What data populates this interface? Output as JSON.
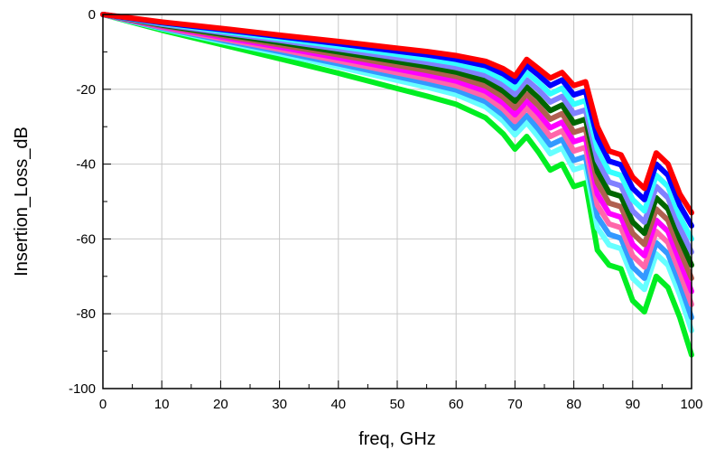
{
  "chart_data": {
    "type": "line",
    "title": "",
    "xlabel": "freq, GHz",
    "ylabel": "Insertion_Loss_dB",
    "xlim": [
      0,
      100
    ],
    "ylim": [
      -100,
      0
    ],
    "xticks": [
      0,
      10,
      20,
      30,
      40,
      50,
      60,
      70,
      80,
      90,
      100
    ],
    "yticks": [
      0,
      -20,
      -40,
      -60,
      -80,
      -100
    ],
    "xtick_labels": [
      "0",
      "10",
      "20",
      "30",
      "40",
      "50",
      "60",
      "70",
      "80",
      "90",
      "100"
    ],
    "ytick_labels": [
      "0",
      "-20",
      "-40",
      "-60",
      "-80",
      "-100"
    ],
    "grid": true,
    "legend": "none",
    "x": [
      0,
      5,
      10,
      20,
      30,
      40,
      50,
      55,
      60,
      65,
      68,
      70,
      72,
      74,
      76,
      78,
      80,
      82,
      84,
      86,
      88,
      90,
      92,
      94,
      96,
      98,
      100
    ],
    "series": [
      {
        "color": "#ff0000",
        "values": [
          0,
          -1.0,
          -2.0,
          -3.7,
          -5.5,
          -7.2,
          -9.0,
          -9.9,
          -11.0,
          -12.5,
          -14.5,
          -16.5,
          -12.0,
          -14.5,
          -17.0,
          -15.5,
          -19.0,
          -18.0,
          -30.0,
          -36.5,
          -37.5,
          -43.5,
          -46.5,
          -37.0,
          -40.0,
          -48.0,
          -53.0
        ]
      },
      {
        "color": "#0000ff",
        "values": [
          0,
          -1.1,
          -2.2,
          -4.0,
          -5.9,
          -7.8,
          -9.8,
          -10.8,
          -12.0,
          -13.7,
          -15.9,
          -18.0,
          -13.7,
          -16.2,
          -19.0,
          -17.5,
          -21.5,
          -20.5,
          -33.0,
          -39.2,
          -40.2,
          -46.5,
          -49.5,
          -40.0,
          -43.0,
          -51.0,
          -56.5
        ]
      },
      {
        "color": "#33ffff",
        "values": [
          0,
          -1.2,
          -2.4,
          -4.4,
          -6.4,
          -8.5,
          -10.7,
          -11.8,
          -13.1,
          -15.0,
          -17.4,
          -19.7,
          -15.6,
          -18.2,
          -21.2,
          -19.7,
          -24.0,
          -23.0,
          -36.0,
          -42.0,
          -43.0,
          -49.5,
          -52.5,
          -43.0,
          -46.0,
          -54.0,
          -60.0
        ]
      },
      {
        "color": "#8080ff",
        "values": [
          0,
          -1.3,
          -2.6,
          -4.8,
          -6.9,
          -9.2,
          -11.6,
          -12.8,
          -14.2,
          -16.3,
          -18.9,
          -21.4,
          -17.5,
          -20.2,
          -23.4,
          -21.9,
          -26.5,
          -25.5,
          -39.0,
          -44.8,
          -45.8,
          -52.5,
          -55.5,
          -46.0,
          -49.0,
          -57.0,
          -63.5
        ]
      },
      {
        "color": "#006600",
        "values": [
          0,
          -1.4,
          -2.8,
          -5.2,
          -7.5,
          -10.0,
          -12.6,
          -13.9,
          -15.4,
          -17.7,
          -20.5,
          -23.2,
          -19.4,
          -22.3,
          -25.7,
          -24.2,
          -29.0,
          -28.0,
          -42.0,
          -47.6,
          -48.6,
          -55.5,
          -58.5,
          -49.0,
          -52.0,
          -60.0,
          -67.0
        ]
      },
      {
        "color": "#b06050",
        "values": [
          0,
          -1.5,
          -3.0,
          -5.6,
          -8.1,
          -10.8,
          -13.6,
          -15.0,
          -16.6,
          -19.1,
          -22.1,
          -25.0,
          -21.3,
          -24.4,
          -28.0,
          -26.5,
          -31.5,
          -30.5,
          -45.0,
          -50.4,
          -51.4,
          -58.5,
          -61.5,
          -52.0,
          -55.0,
          -63.0,
          -70.5
        ]
      },
      {
        "color": "#ff00ff",
        "values": [
          0,
          -1.6,
          -3.2,
          -6.0,
          -8.7,
          -11.6,
          -14.6,
          -16.1,
          -17.8,
          -20.5,
          -23.7,
          -26.8,
          -23.2,
          -26.5,
          -30.3,
          -28.8,
          -34.0,
          -33.0,
          -48.0,
          -53.2,
          -54.2,
          -61.5,
          -64.5,
          -55.0,
          -58.0,
          -66.0,
          -74.0
        ]
      },
      {
        "color": "#ff66aa",
        "values": [
          0,
          -1.7,
          -3.4,
          -6.4,
          -9.3,
          -12.4,
          -15.6,
          -17.2,
          -19.0,
          -21.9,
          -25.3,
          -28.6,
          -25.1,
          -28.6,
          -32.6,
          -31.1,
          -36.5,
          -35.5,
          -51.0,
          -56.0,
          -57.0,
          -64.5,
          -67.5,
          -58.0,
          -61.0,
          -69.0,
          -77.5
        ]
      },
      {
        "color": "#3399ff",
        "values": [
          0,
          -1.8,
          -3.6,
          -6.8,
          -9.9,
          -13.2,
          -16.6,
          -18.3,
          -20.2,
          -23.3,
          -26.9,
          -30.4,
          -27.0,
          -30.7,
          -34.9,
          -33.4,
          -39.0,
          -38.0,
          -54.0,
          -58.8,
          -59.8,
          -67.5,
          -70.5,
          -61.0,
          -64.0,
          -72.0,
          -81.0
        ]
      },
      {
        "color": "#66ffff",
        "values": [
          0,
          -1.9,
          -3.8,
          -7.2,
          -10.5,
          -14.0,
          -17.6,
          -19.4,
          -21.4,
          -24.7,
          -28.5,
          -32.2,
          -28.9,
          -32.8,
          -37.2,
          -35.7,
          -41.5,
          -40.5,
          -57.0,
          -61.6,
          -62.6,
          -70.5,
          -73.5,
          -64.0,
          -67.0,
          -75.0,
          -84.5
        ]
      },
      {
        "color": "#00ee22",
        "values": [
          0,
          -2.1,
          -4.2,
          -8.0,
          -11.8,
          -15.7,
          -19.8,
          -21.8,
          -24.0,
          -27.6,
          -31.9,
          -36.0,
          -32.6,
          -36.8,
          -41.6,
          -40.0,
          -46.0,
          -45.0,
          -63.0,
          -67.0,
          -68.0,
          -76.5,
          -79.5,
          -70.0,
          -73.0,
          -81.0,
          -91.0
        ]
      }
    ]
  }
}
